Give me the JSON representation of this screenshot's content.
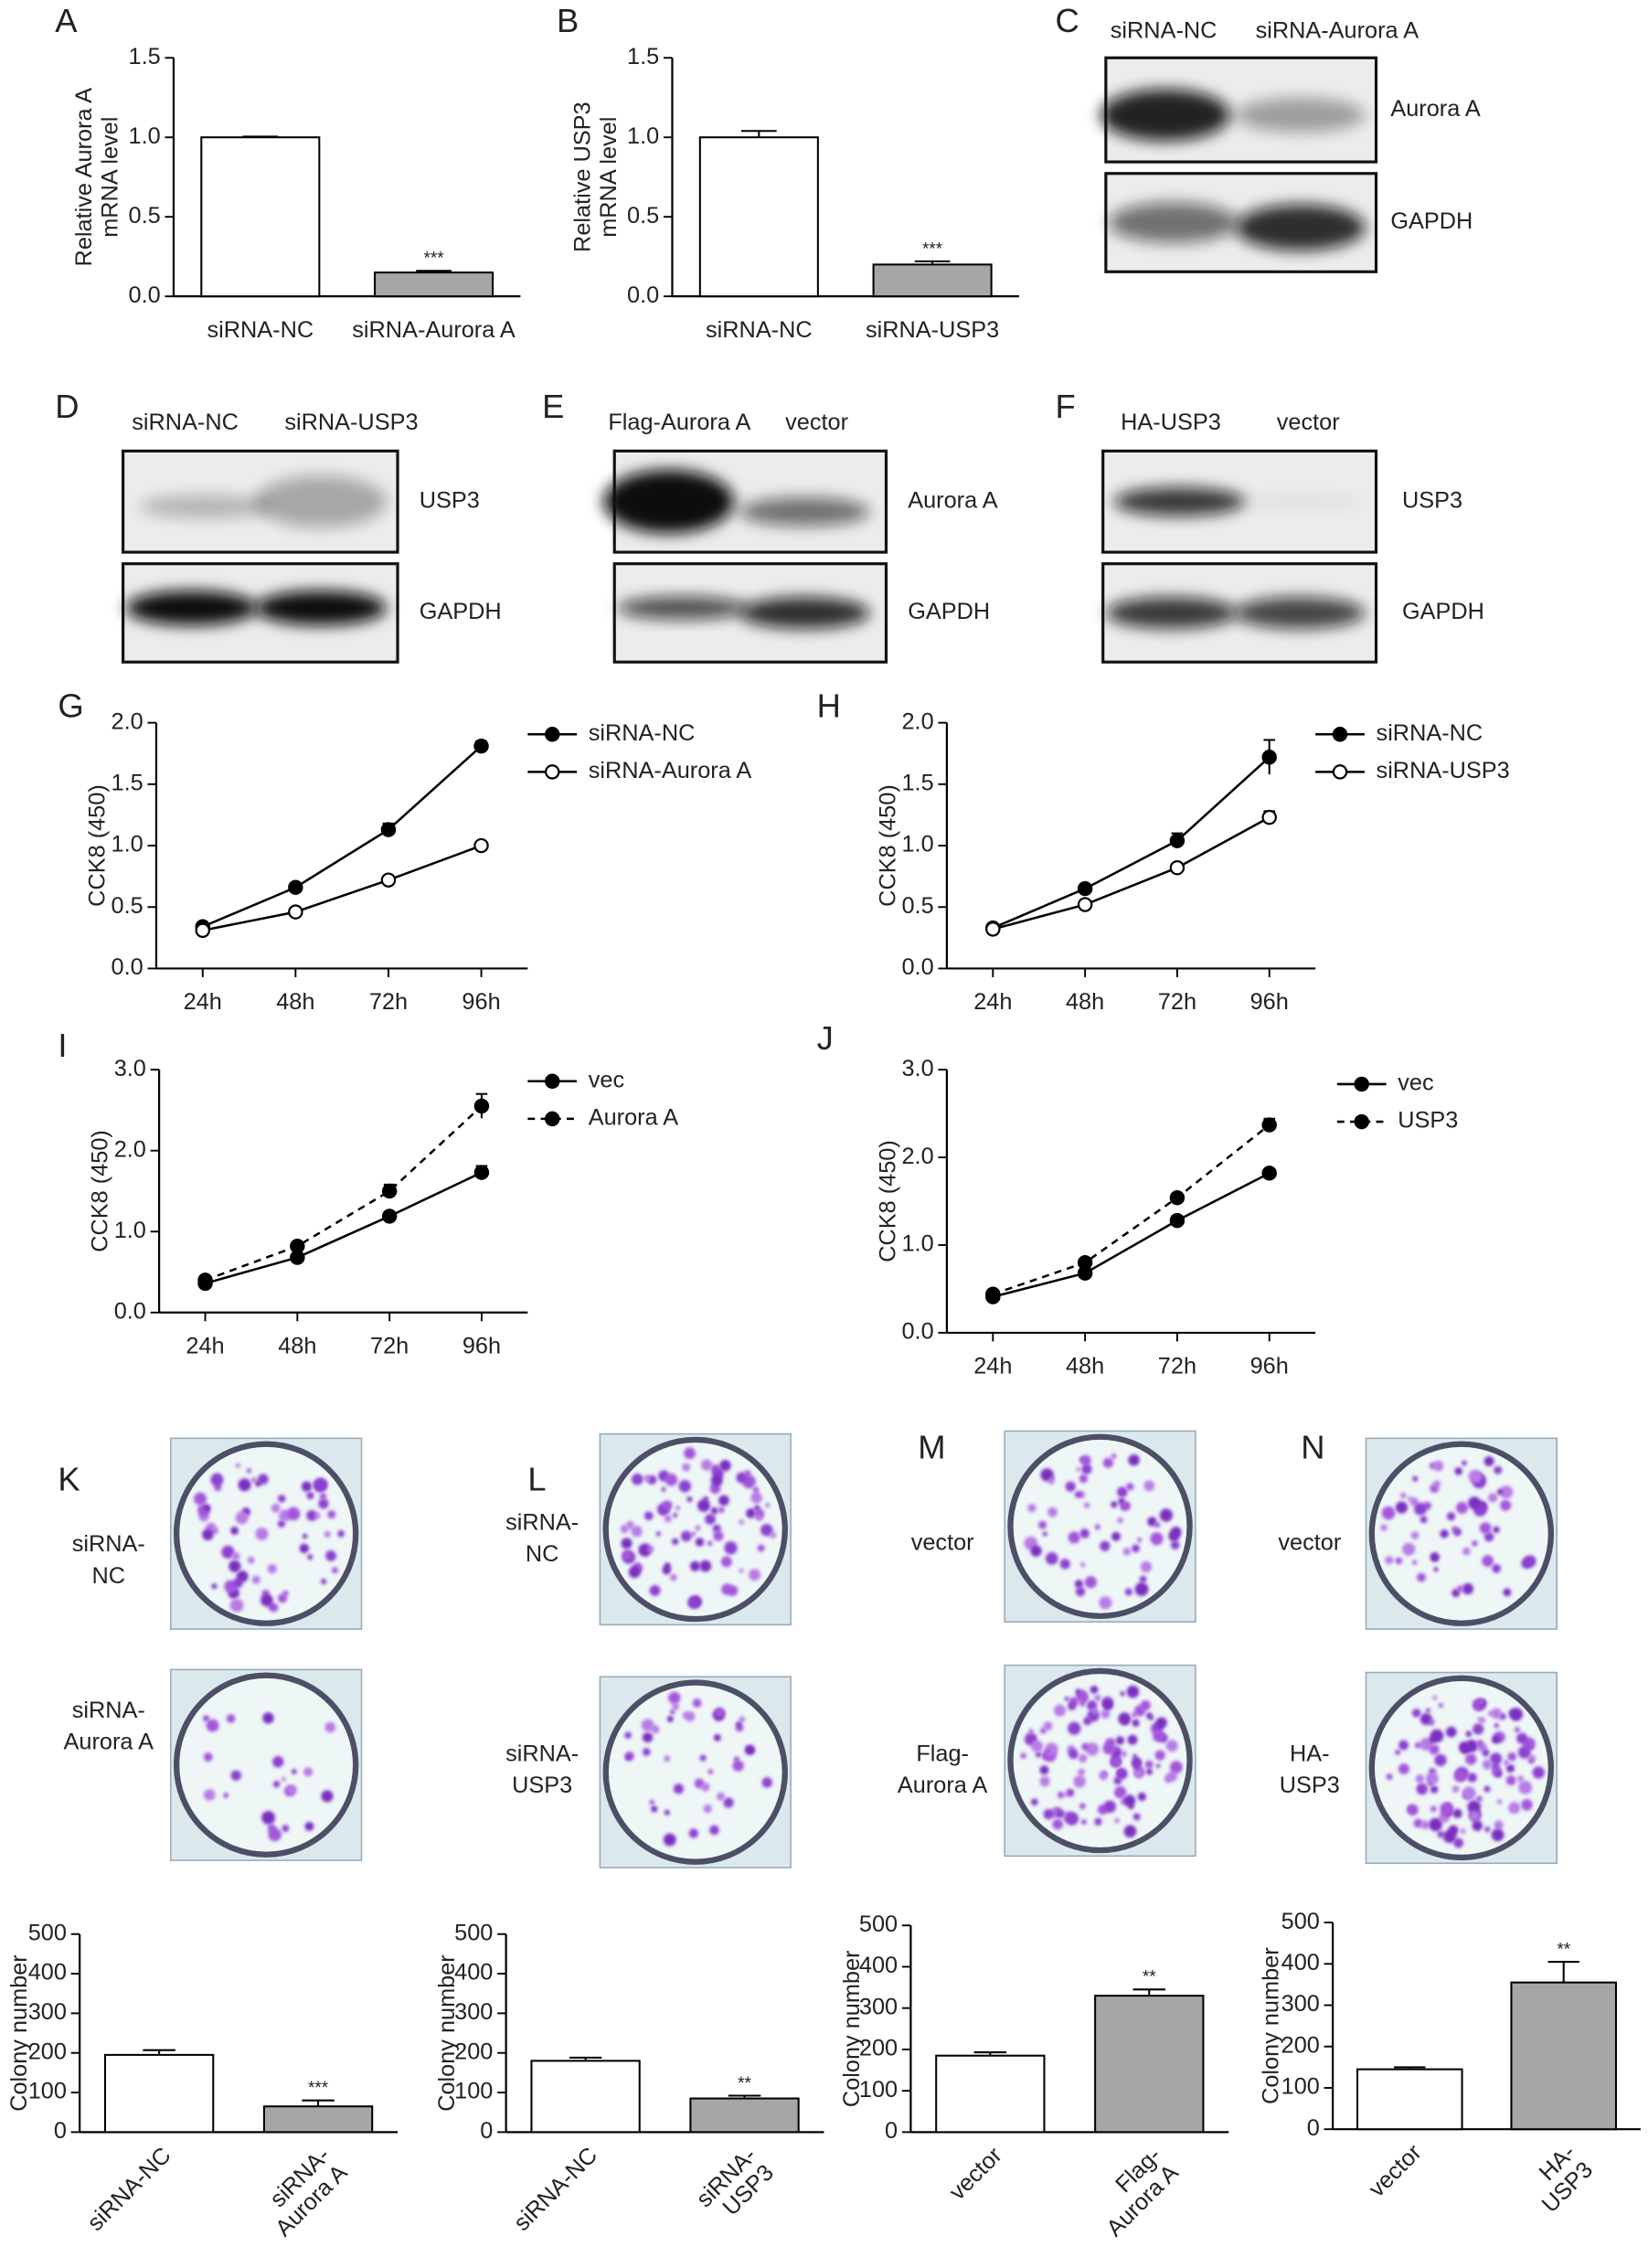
{
  "chart_data": [
    {
      "type": "bar",
      "panel": "A",
      "ylabel": [
        "Relative Aurora A",
        "mRNA level"
      ],
      "categories": [
        [
          "siRNA-NC"
        ],
        [
          "siRNA-Aurora A"
        ]
      ],
      "values": [
        1.0,
        0.15
      ],
      "errors": [
        0.005,
        0.01
      ],
      "significance": [
        null,
        "***"
      ],
      "colors": [
        "#ffffff",
        "#a6a6a6"
      ],
      "ylim": [
        0,
        1.5
      ],
      "yticks": [
        {
          "value": 0,
          "label": "0.0"
        },
        0.5,
        {
          "value": 1,
          "label": "1.0"
        },
        1.5
      ]
    },
    {
      "type": "bar",
      "panel": "B",
      "ylabel": [
        "Relative USP3",
        "mRNA level"
      ],
      "categories": [
        [
          "siRNA-NC"
        ],
        [
          "siRNA-USP3"
        ]
      ],
      "values": [
        1.0,
        0.2
      ],
      "errors": [
        0.04,
        0.02
      ],
      "significance": [
        null,
        "***"
      ],
      "colors": [
        "#ffffff",
        "#a6a6a6"
      ],
      "ylim": [
        0,
        1.5
      ],
      "yticks": [
        {
          "value": 0,
          "label": "0.0"
        },
        0.5,
        {
          "value": 1,
          "label": "1.0"
        },
        1.5
      ]
    },
    {
      "type": "line",
      "panel": "G",
      "ylabel": [
        "CCK8 (450)"
      ],
      "categories": [
        [
          "24h"
        ],
        [
          "48h"
        ],
        [
          "72h"
        ],
        [
          "96h"
        ]
      ],
      "series": [
        {
          "name": "siRNA-NC",
          "color": "#000000",
          "marker": "filled",
          "line_style": "solid",
          "values": [
            0.34,
            0.66,
            1.13,
            1.81
          ],
          "errors": [
            0.02,
            0.02,
            0.05,
            0.04
          ]
        },
        {
          "name": "siRNA-Aurora A",
          "color": "#000000",
          "marker": "open",
          "line_style": "solid",
          "values": [
            0.31,
            0.46,
            0.72,
            1.0
          ],
          "errors": [
            0.01,
            0.01,
            0.02,
            0.03
          ]
        }
      ],
      "ylim": [
        0,
        2
      ],
      "yticks": [
        {
          "value": 0,
          "label": "0.0"
        },
        0.5,
        {
          "value": 1,
          "label": "1.0"
        },
        1.5,
        {
          "value": 2,
          "label": "2.0"
        }
      ]
    },
    {
      "type": "line",
      "panel": "H",
      "ylabel": [
        "CCK8 (450)"
      ],
      "categories": [
        [
          "24h"
        ],
        [
          "48h"
        ],
        [
          "72h"
        ],
        [
          "96h"
        ]
      ],
      "series": [
        {
          "name": "siRNA-NC",
          "color": "#000000",
          "marker": "filled",
          "line_style": "solid",
          "values": [
            0.33,
            0.65,
            1.04,
            1.72
          ],
          "errors": [
            0.02,
            0.02,
            0.06,
            0.14
          ]
        },
        {
          "name": "siRNA-USP3",
          "color": "#000000",
          "marker": "open",
          "line_style": "solid",
          "values": [
            0.32,
            0.52,
            0.82,
            1.23
          ],
          "errors": [
            0.01,
            0.02,
            0.02,
            0.05
          ]
        }
      ],
      "ylim": [
        0,
        2
      ],
      "yticks": [
        {
          "value": 0,
          "label": "0.0"
        },
        0.5,
        {
          "value": 1,
          "label": "1.0"
        },
        1.5,
        {
          "value": 2,
          "label": "2.0"
        }
      ]
    },
    {
      "type": "line",
      "panel": "I",
      "ylabel": [
        "CCK8 (450)"
      ],
      "categories": [
        [
          "24h"
        ],
        [
          "48h"
        ],
        [
          "72h"
        ],
        [
          "96h"
        ]
      ],
      "series": [
        {
          "name": "vec",
          "color": "#000000",
          "marker": "filled",
          "line_style": "solid",
          "values": [
            0.36,
            0.68,
            1.19,
            1.73
          ],
          "errors": [
            0.02,
            0.02,
            0.03,
            0.08
          ]
        },
        {
          "name": "Aurora A",
          "color": "#000000",
          "marker": "filled",
          "line_style": "dashed",
          "values": [
            0.4,
            0.82,
            1.5,
            2.55
          ],
          "errors": [
            0.02,
            0.02,
            0.08,
            0.15
          ]
        }
      ],
      "ylim": [
        0,
        3
      ],
      "yticks": [
        {
          "value": 0,
          "label": "0.0"
        },
        {
          "value": 1,
          "label": "1.0"
        },
        {
          "value": 2,
          "label": "2.0"
        },
        {
          "value": 3,
          "label": "3.0"
        }
      ]
    },
    {
      "type": "line",
      "panel": "J",
      "ylabel": [
        "CCK8 (450)"
      ],
      "categories": [
        [
          "24h"
        ],
        [
          "48h"
        ],
        [
          "72h"
        ],
        [
          "96h"
        ]
      ],
      "series": [
        {
          "name": "vec",
          "color": "#000000",
          "marker": "filled",
          "line_style": "solid",
          "values": [
            0.41,
            0.68,
            1.28,
            1.82
          ],
          "errors": [
            0.02,
            0.02,
            0.05,
            0.04
          ]
        },
        {
          "name": "USP3",
          "color": "#000000",
          "marker": "filled",
          "line_style": "dashed",
          "values": [
            0.44,
            0.8,
            1.54,
            2.37
          ],
          "errors": [
            0.02,
            0.03,
            0.03,
            0.07
          ]
        }
      ],
      "ylim": [
        0,
        3
      ],
      "yticks": [
        {
          "value": 0,
          "label": "0.0"
        },
        {
          "value": 1,
          "label": "1.0"
        },
        {
          "value": 2,
          "label": "2.0"
        },
        {
          "value": 3,
          "label": "3.0"
        }
      ]
    },
    {
      "type": "bar",
      "ylabel": [
        "Colony number"
      ],
      "x_label_rotation": -45,
      "categories": [
        [
          "siRNA-NC"
        ],
        [
          "siRNA-",
          "Aurora A"
        ]
      ],
      "values": [
        195,
        65
      ],
      "errors": [
        12,
        15
      ],
      "significance": [
        null,
        "***"
      ],
      "colors": [
        "#ffffff",
        "#a6a6a6"
      ],
      "ylim": [
        0,
        500
      ],
      "yticks": [
        0,
        100,
        200,
        300,
        400,
        500
      ]
    },
    {
      "type": "bar",
      "ylabel": [
        "Colony number"
      ],
      "x_label_rotation": -45,
      "categories": [
        [
          "siRNA-NC"
        ],
        [
          "siRNA-",
          "USP3"
        ]
      ],
      "values": [
        180,
        85
      ],
      "errors": [
        8,
        7
      ],
      "significance": [
        null,
        "**"
      ],
      "colors": [
        "#ffffff",
        "#a6a6a6"
      ],
      "ylim": [
        0,
        500
      ],
      "yticks": [
        0,
        100,
        200,
        300,
        400,
        500
      ]
    },
    {
      "type": "bar",
      "ylabel": [
        "Colony number"
      ],
      "x_label_rotation": -45,
      "categories": [
        [
          "vector"
        ],
        [
          "Flag-",
          "Aurora A"
        ]
      ],
      "values": [
        185,
        330
      ],
      "errors": [
        8,
        15
      ],
      "significance": [
        null,
        "**"
      ],
      "colors": [
        "#ffffff",
        "#a6a6a6"
      ],
      "ylim": [
        0,
        500
      ],
      "yticks": [
        0,
        100,
        200,
        300,
        400,
        500
      ]
    },
    {
      "type": "bar",
      "ylabel": [
        "Colony number"
      ],
      "x_label_rotation": -45,
      "categories": [
        [
          "vector"
        ],
        [
          "HA-",
          "USP3"
        ]
      ],
      "values": [
        145,
        355
      ],
      "errors": [
        5,
        50
      ],
      "significance": [
        null,
        "**"
      ],
      "colors": [
        "#ffffff",
        "#a6a6a6"
      ],
      "ylim": [
        0,
        500
      ],
      "yticks": [
        0,
        100,
        200,
        300,
        400,
        500
      ]
    }
  ],
  "western_blots": [
    {
      "panel": "C",
      "lanes": [
        "siRNA-NC",
        "siRNA-Aurora A"
      ],
      "bands": [
        "Aurora A",
        "GAPDH"
      ]
    },
    {
      "panel": "D",
      "lanes": [
        "siRNA-NC",
        "siRNA-USP3"
      ],
      "bands": [
        "USP3",
        "GAPDH"
      ]
    },
    {
      "panel": "E",
      "lanes": [
        "Flag-Aurora A",
        "vector"
      ],
      "bands": [
        "Aurora A",
        "GAPDH"
      ]
    },
    {
      "panel": "F",
      "lanes": [
        "HA-USP3",
        "vector"
      ],
      "bands": [
        "USP3",
        "GAPDH"
      ]
    }
  ],
  "colony_assays": [
    {
      "panel": "K",
      "labels": [
        [
          "siRNA-",
          "NC"
        ],
        [
          "siRNA-",
          "Aurora A"
        ]
      ]
    },
    {
      "panel": "L",
      "labels": [
        [
          "siRNA-",
          "NC"
        ],
        [
          "siRNA-",
          "USP3"
        ]
      ]
    },
    {
      "panel": "M",
      "labels": [
        [
          "vector"
        ],
        [
          "Flag-",
          "Aurora A"
        ]
      ]
    },
    {
      "panel": "N",
      "labels": [
        [
          "vector"
        ],
        [
          "HA-",
          "USP3"
        ]
      ]
    }
  ]
}
